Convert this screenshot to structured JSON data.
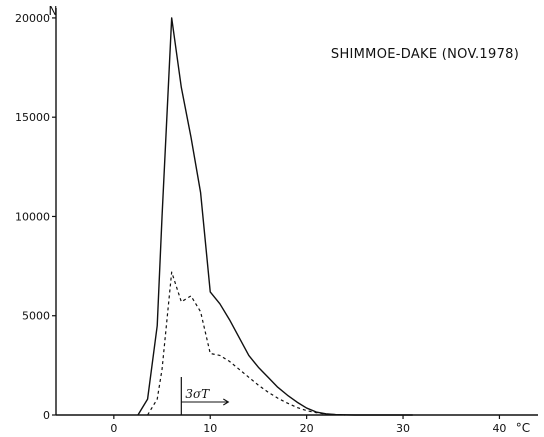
{
  "chart_data": {
    "type": "line",
    "title": "SHIMMOE-DAKE (NOV.1978)",
    "xlabel": "°C",
    "ylabel": "N",
    "xlim": [
      -6,
      44
    ],
    "ylim": [
      0,
      20500
    ],
    "x_ticks": [
      0,
      10,
      20,
      30,
      40
    ],
    "x_tick_labels": [
      "0",
      "10",
      "20",
      "30",
      "40"
    ],
    "y_ticks": [
      0,
      5000,
      10000,
      15000,
      20000
    ],
    "y_tick_labels": [
      "0",
      "5000",
      "10000",
      "15000",
      "20000"
    ],
    "grid": false,
    "legend": "none",
    "annotation": {
      "label": "3σT",
      "x": 7
    },
    "series": [
      {
        "style": "solid",
        "x": [
          2.5,
          3.5,
          4.5,
          5,
          6,
          7,
          8,
          9,
          10,
          11,
          12,
          13,
          14,
          15,
          16,
          17,
          18,
          19,
          20,
          21,
          22,
          23,
          24,
          25,
          27,
          29,
          31
        ],
        "y": [
          0,
          800,
          4500,
          10000,
          20000,
          16500,
          14000,
          11200,
          6200,
          5600,
          4800,
          3900,
          3000,
          2400,
          1900,
          1400,
          1000,
          650,
          350,
          150,
          60,
          20,
          10,
          0,
          0,
          0,
          0
        ]
      },
      {
        "style": "dashed",
        "x": [
          3.5,
          4.5,
          5,
          6,
          7,
          8,
          9,
          10,
          11,
          12,
          13,
          14,
          15,
          16,
          17,
          18,
          19,
          20,
          21,
          22,
          24
        ],
        "y": [
          0,
          800,
          2300,
          7200,
          5700,
          6000,
          5200,
          3100,
          3000,
          2700,
          2300,
          1900,
          1500,
          1150,
          850,
          600,
          380,
          220,
          120,
          40,
          0
        ]
      }
    ]
  }
}
